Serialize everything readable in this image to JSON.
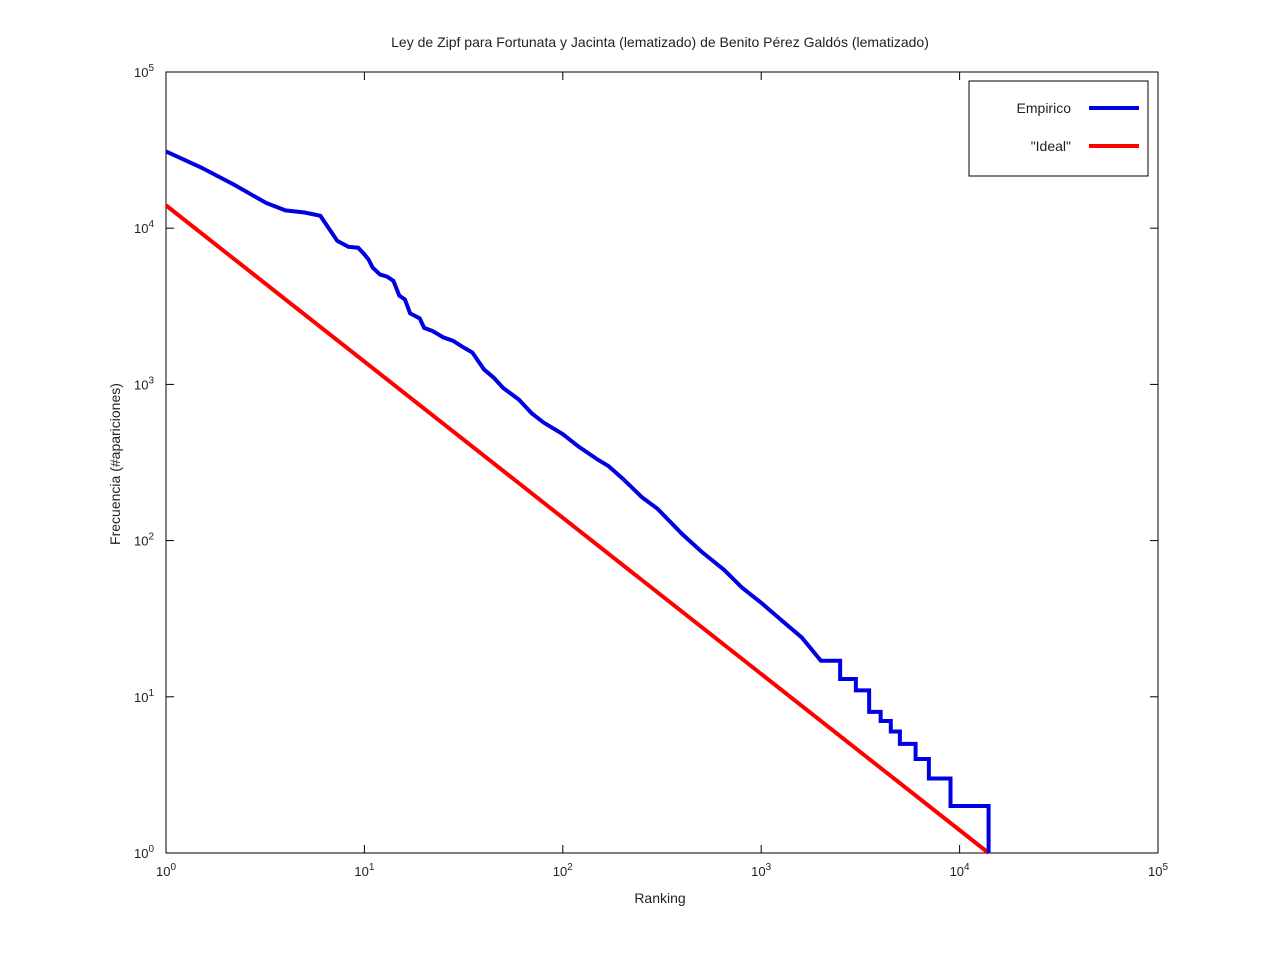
{
  "chart_data": {
    "type": "line",
    "title": "Ley de Zipf para Fortunata y Jacinta (lematizado) de Benito Pérez Galdós (lematizado)",
    "xlabel": "Ranking",
    "ylabel": "Frecuencia (#apariciones)",
    "x_scale": "log",
    "y_scale": "log",
    "xlim": [
      1,
      100000
    ],
    "ylim": [
      1,
      100000
    ],
    "x_ticks": [
      {
        "base": "10",
        "exp": "0"
      },
      {
        "base": "10",
        "exp": "1"
      },
      {
        "base": "10",
        "exp": "2"
      },
      {
        "base": "10",
        "exp": "3"
      },
      {
        "base": "10",
        "exp": "4"
      },
      {
        "base": "10",
        "exp": "5"
      }
    ],
    "y_ticks": [
      {
        "base": "10",
        "exp": "0"
      },
      {
        "base": "10",
        "exp": "1"
      },
      {
        "base": "10",
        "exp": "2"
      },
      {
        "base": "10",
        "exp": "3"
      },
      {
        "base": "10",
        "exp": "4"
      },
      {
        "base": "10",
        "exp": "5"
      }
    ],
    "grid": false,
    "legend_position": "top-right",
    "series": [
      {
        "name": "Empirico",
        "color": "#0000e0",
        "style": "step",
        "points": [
          [
            1,
            31000
          ],
          [
            1.5,
            24500
          ],
          [
            2.2,
            19000
          ],
          [
            3.2,
            14500
          ],
          [
            4,
            13000
          ],
          [
            5,
            12600
          ],
          [
            6,
            12000
          ],
          [
            7.3,
            8300
          ],
          [
            8.3,
            7600
          ],
          [
            9.3,
            7500
          ],
          [
            10,
            6800
          ],
          [
            10.5,
            6300
          ],
          [
            11,
            5600
          ],
          [
            12,
            5050
          ],
          [
            13,
            4900
          ],
          [
            14,
            4600
          ],
          [
            15,
            3700
          ],
          [
            16,
            3500
          ],
          [
            17,
            2850
          ],
          [
            19,
            2650
          ],
          [
            20,
            2300
          ],
          [
            22,
            2200
          ],
          [
            25,
            2000
          ],
          [
            28,
            1900
          ],
          [
            31,
            1750
          ],
          [
            35,
            1600
          ],
          [
            40,
            1250
          ],
          [
            45,
            1100
          ],
          [
            50,
            950
          ],
          [
            60,
            800
          ],
          [
            70,
            650
          ],
          [
            80,
            570
          ],
          [
            100,
            480
          ],
          [
            120,
            400
          ],
          [
            150,
            330
          ],
          [
            170,
            300
          ],
          [
            200,
            250
          ],
          [
            250,
            190
          ],
          [
            300,
            160
          ],
          [
            400,
            110
          ],
          [
            500,
            85
          ],
          [
            650,
            65
          ],
          [
            800,
            50
          ],
          [
            1000,
            40
          ],
          [
            1300,
            30
          ],
          [
            1600,
            24
          ],
          [
            2000,
            17
          ],
          [
            2500,
            13
          ],
          [
            3000,
            11
          ],
          [
            3500,
            8
          ],
          [
            4000,
            7
          ],
          [
            4500,
            6
          ],
          [
            5000,
            5
          ],
          [
            6000,
            4
          ],
          [
            7000,
            3
          ],
          [
            9000,
            2
          ],
          [
            14000,
            1
          ]
        ]
      },
      {
        "name": "\"Ideal\"",
        "color": "#ff0000",
        "style": "line",
        "points": [
          [
            1,
            14000
          ],
          [
            14000,
            1
          ]
        ]
      }
    ]
  }
}
